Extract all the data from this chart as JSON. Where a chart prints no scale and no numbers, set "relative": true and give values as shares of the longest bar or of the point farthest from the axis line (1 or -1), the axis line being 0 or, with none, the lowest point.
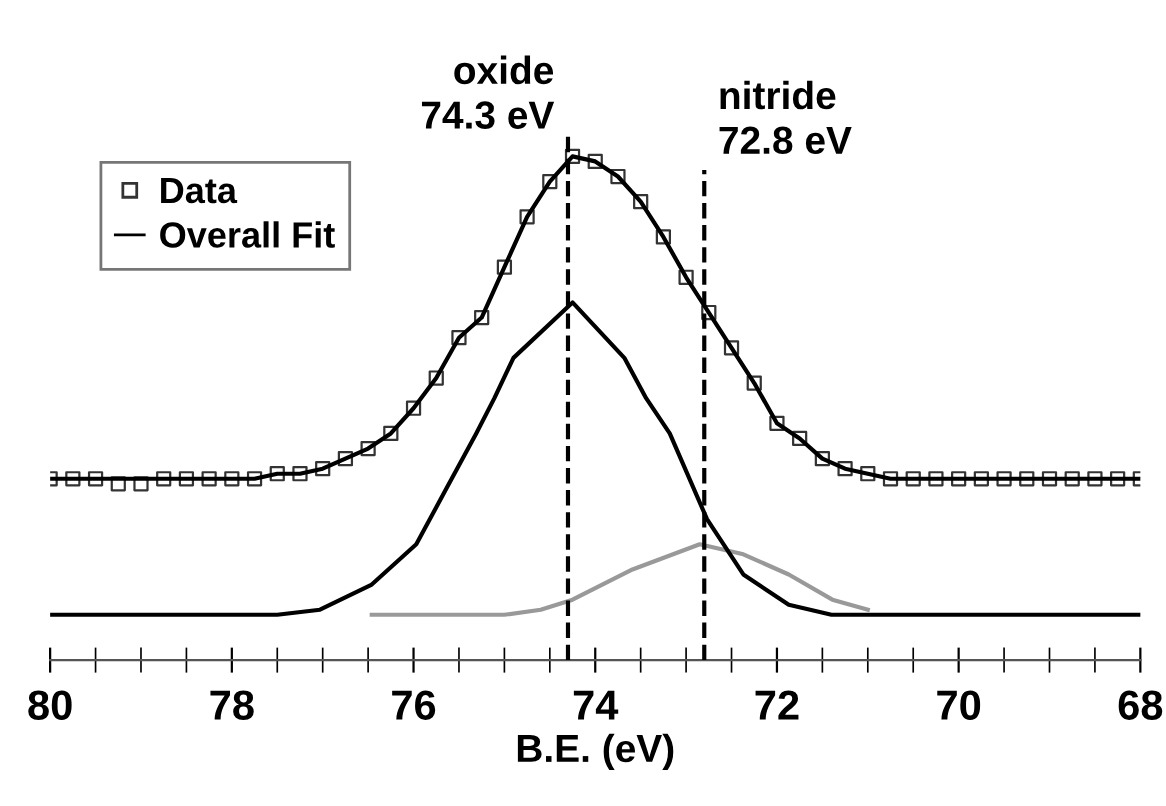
{
  "chart_data": {
    "type": "line",
    "relative": true,
    "xlabel": "B.E. (eV)",
    "xlim": [
      80,
      68
    ],
    "xticks": [
      80,
      {
        "value": 79.5,
        "label": null
      },
      {
        "value": 79,
        "label": null
      },
      {
        "value": 78.5,
        "label": null
      },
      78,
      {
        "value": 77.5,
        "label": null
      },
      {
        "value": 77,
        "label": null
      },
      {
        "value": 76.5,
        "label": null
      },
      76,
      {
        "value": 75.5,
        "label": null
      },
      {
        "value": 75,
        "label": null
      },
      {
        "value": 74.5,
        "label": null
      },
      74,
      {
        "value": 73.5,
        "label": null
      },
      {
        "value": 73,
        "label": null
      },
      {
        "value": 72.5,
        "label": null
      },
      72,
      {
        "value": 71.5,
        "label": null
      },
      {
        "value": 71,
        "label": null
      },
      {
        "value": 70.5,
        "label": null
      },
      70,
      {
        "value": 69.5,
        "label": null
      },
      {
        "value": 69,
        "label": null
      },
      {
        "value": 68.5,
        "label": null
      },
      68
    ],
    "x": [
      80,
      79.75,
      79.5,
      79.25,
      79,
      78.75,
      78.5,
      78.25,
      78,
      77.75,
      77.5,
      77.25,
      77,
      76.75,
      76.5,
      76.25,
      76,
      75.75,
      75.5,
      75.25,
      75,
      74.75,
      74.5,
      74.25,
      74,
      73.75,
      73.5,
      73.25,
      73,
      72.75,
      72.5,
      72.25,
      72,
      71.75,
      71.5,
      71.25,
      71,
      70.75,
      70.5,
      70.25,
      70,
      69.75,
      69.5,
      69.25,
      69,
      68.75,
      68.5,
      68.25,
      68
    ],
    "series": [
      {
        "name": "Data",
        "type": "scatter",
        "marker": "square",
        "color": "#333333",
        "values": [
          0.36,
          0.36,
          0.36,
          0.35,
          0.35,
          0.36,
          0.36,
          0.36,
          0.36,
          0.36,
          0.37,
          0.37,
          0.38,
          0.4,
          0.42,
          0.45,
          0.5,
          0.56,
          0.64,
          0.68,
          0.78,
          0.88,
          0.95,
          1.0,
          0.99,
          0.96,
          0.91,
          0.84,
          0.76,
          0.69,
          0.62,
          0.55,
          0.47,
          0.44,
          0.4,
          0.38,
          0.37,
          0.36,
          0.36,
          0.36,
          0.36,
          0.36,
          0.36,
          0.36,
          0.36,
          0.36,
          0.36,
          0.36,
          0.36
        ]
      },
      {
        "name": "Overall Fit",
        "color": "#000000",
        "values": [
          0.36,
          0.36,
          0.36,
          0.36,
          0.36,
          0.36,
          0.36,
          0.36,
          0.36,
          0.36,
          0.37,
          0.37,
          0.38,
          0.4,
          0.42,
          0.45,
          0.5,
          0.56,
          0.64,
          0.68,
          0.78,
          0.88,
          0.95,
          1.0,
          0.99,
          0.96,
          0.91,
          0.84,
          0.76,
          0.69,
          0.62,
          0.55,
          0.47,
          0.44,
          0.4,
          0.38,
          0.37,
          0.36,
          0.36,
          0.36,
          0.36,
          0.36,
          0.36,
          0.36,
          0.36,
          0.36,
          0.36,
          0.36,
          0.36
        ]
      },
      {
        "color": "#000000",
        "x": [
          80,
          77.5,
          77.03,
          76.46,
          75.97,
          75.64,
          75.31,
          75.11,
          74.9,
          74.25,
          73.68,
          73.44,
          73.18,
          72.77,
          72.37,
          71.87,
          71.4,
          70,
          68
        ],
        "values": [
          0.09,
          0.09,
          0.1,
          0.15,
          0.23,
          0.34,
          0.45,
          0.52,
          0.6,
          0.71,
          0.6,
          0.52,
          0.45,
          0.28,
          0.17,
          0.11,
          0.09,
          0.09,
          0.09
        ]
      },
      {
        "color": "#999999",
        "x": [
          76.46,
          75,
          74.6,
          74.25,
          73.59,
          72.85,
          72.37,
          71.87,
          71.39,
          71
        ],
        "values": [
          0.09,
          0.09,
          0.1,
          0.12,
          0.18,
          0.23,
          0.21,
          0.17,
          0.12,
          0.1
        ]
      }
    ],
    "ref_lines": [
      {
        "axis": "x",
        "value": 74.3,
        "label": "oxide\n74.3 eV",
        "color": "#000000",
        "line_style": "dashed"
      },
      {
        "axis": "x",
        "value": 72.8,
        "label": "nitride\n72.8 eV",
        "color": "#000000",
        "line_style": "dashed"
      }
    ],
    "legend": "top left",
    "tick_labels": "x"
  }
}
